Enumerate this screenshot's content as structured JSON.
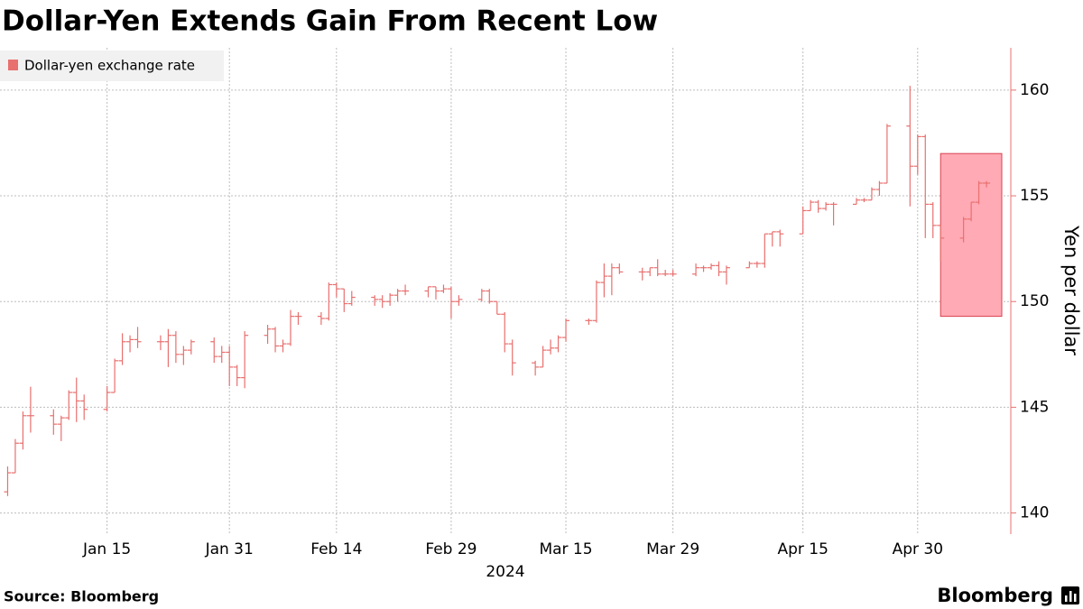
{
  "chart_data": {
    "type": "ohlc",
    "title": "Dollar-Yen Extends Gain From Recent Low",
    "y_label": "Yen per dollar",
    "x_label": "2024",
    "source": "Source: Bloomberg",
    "brand": "Bloomberg",
    "x": [
      "2024-01-02",
      "2024-01-03",
      "2024-01-04",
      "2024-01-05",
      "2024-01-08",
      "2024-01-09",
      "2024-01-10",
      "2024-01-11",
      "2024-01-12",
      "2024-01-15",
      "2024-01-16",
      "2024-01-17",
      "2024-01-18",
      "2024-01-19",
      "2024-01-22",
      "2024-01-23",
      "2024-01-24",
      "2024-01-25",
      "2024-01-26",
      "2024-01-29",
      "2024-01-30",
      "2024-01-31",
      "2024-02-01",
      "2024-02-02",
      "2024-02-05",
      "2024-02-06",
      "2024-02-07",
      "2024-02-08",
      "2024-02-09",
      "2024-02-12",
      "2024-02-13",
      "2024-02-14",
      "2024-02-15",
      "2024-02-16",
      "2024-02-19",
      "2024-02-20",
      "2024-02-21",
      "2024-02-22",
      "2024-02-23",
      "2024-02-26",
      "2024-02-27",
      "2024-02-28",
      "2024-02-29",
      "2024-03-01",
      "2024-03-04",
      "2024-03-05",
      "2024-03-06",
      "2024-03-07",
      "2024-03-08",
      "2024-03-11",
      "2024-03-12",
      "2024-03-13",
      "2024-03-14",
      "2024-03-15",
      "2024-03-18",
      "2024-03-19",
      "2024-03-20",
      "2024-03-21",
      "2024-03-22",
      "2024-03-25",
      "2024-03-26",
      "2024-03-27",
      "2024-03-28",
      "2024-03-29",
      "2024-04-01",
      "2024-04-02",
      "2024-04-03",
      "2024-04-04",
      "2024-04-05",
      "2024-04-08",
      "2024-04-09",
      "2024-04-10",
      "2024-04-11",
      "2024-04-12",
      "2024-04-15",
      "2024-04-16",
      "2024-04-17",
      "2024-04-18",
      "2024-04-19",
      "2024-04-22",
      "2024-04-23",
      "2024-04-24",
      "2024-04-25",
      "2024-04-26",
      "2024-04-29",
      "2024-04-30",
      "2024-05-01",
      "2024-05-02",
      "2024-05-03",
      "2024-05-06",
      "2024-05-07",
      "2024-05-08",
      "2024-05-09"
    ],
    "series": [
      {
        "name": "Dollar-yen exchange rate",
        "color": "#e8706f",
        "open": [
          141.0,
          141.9,
          143.3,
          144.6,
          144.6,
          144.2,
          144.5,
          145.7,
          145.3,
          144.9,
          145.7,
          147.2,
          148.1,
          148.2,
          148.1,
          148.1,
          148.4,
          147.5,
          147.7,
          148.1,
          147.4,
          147.6,
          146.9,
          146.4,
          148.4,
          148.7,
          147.9,
          148.0,
          149.3,
          149.3,
          149.2,
          150.8,
          150.6,
          149.9,
          150.2,
          150.1,
          150.0,
          150.3,
          150.5,
          150.5,
          150.7,
          150.5,
          150.6,
          150.0,
          150.1,
          150.5,
          150.0,
          149.4,
          148.0,
          147.1,
          146.9,
          147.7,
          147.8,
          148.3,
          149.1,
          149.1,
          150.9,
          151.2,
          151.6,
          151.4,
          151.4,
          151.6,
          151.3,
          151.3,
          151.3,
          151.6,
          151.6,
          151.7,
          151.4,
          151.6,
          151.8,
          151.8,
          153.2,
          153.3,
          153.2,
          154.3,
          154.7,
          154.4,
          154.6,
          154.6,
          154.8,
          154.8,
          155.3,
          155.6,
          158.3,
          156.4,
          157.8,
          154.6,
          153.6,
          153.0,
          153.9,
          154.7,
          155.6
        ],
        "high": [
          142.2,
          143.5,
          144.8,
          145.97,
          144.9,
          144.6,
          145.8,
          146.4,
          145.6,
          146.0,
          147.3,
          148.5,
          148.4,
          148.8,
          148.4,
          148.7,
          148.6,
          147.9,
          148.2,
          148.3,
          147.9,
          147.9,
          147.0,
          148.6,
          148.9,
          148.8,
          148.2,
          149.6,
          149.5,
          149.5,
          150.9,
          150.9,
          150.6,
          150.5,
          150.3,
          150.3,
          150.4,
          150.6,
          150.8,
          150.7,
          150.7,
          150.8,
          150.7,
          150.3,
          150.6,
          150.6,
          150.0,
          149.5,
          148.2,
          147.2,
          147.9,
          148.2,
          148.4,
          149.2,
          149.2,
          151.0,
          151.8,
          151.8,
          151.8,
          151.6,
          151.6,
          152.0,
          151.5,
          151.5,
          151.8,
          151.7,
          151.8,
          151.9,
          151.7,
          151.9,
          151.9,
          153.2,
          153.3,
          153.4,
          154.5,
          154.8,
          154.8,
          154.7,
          154.7,
          154.9,
          154.9,
          155.4,
          155.7,
          158.4,
          160.2,
          157.9,
          157.9,
          154.7,
          153.6,
          154.0,
          154.7,
          155.7,
          155.7
        ],
        "low": [
          140.8,
          141.9,
          143.0,
          143.8,
          143.7,
          143.4,
          144.4,
          144.3,
          144.4,
          144.8,
          145.7,
          147.0,
          147.6,
          147.8,
          147.7,
          146.9,
          147.1,
          147.0,
          147.5,
          147.1,
          147.1,
          146.0,
          146.0,
          145.9,
          148.0,
          147.6,
          147.6,
          147.9,
          148.9,
          148.9,
          149.1,
          150.2,
          149.5,
          149.8,
          149.8,
          149.7,
          149.8,
          150.0,
          150.3,
          150.2,
          150.1,
          150.4,
          149.2,
          149.8,
          150.0,
          149.9,
          149.4,
          147.6,
          146.5,
          146.5,
          146.9,
          147.5,
          147.6,
          148.1,
          148.9,
          149.0,
          150.2,
          150.3,
          151.3,
          151.0,
          151.2,
          151.2,
          151.2,
          151.2,
          151.2,
          151.4,
          151.5,
          151.2,
          150.8,
          151.6,
          151.6,
          151.6,
          152.6,
          152.6,
          153.2,
          154.3,
          154.2,
          154.3,
          153.6,
          154.6,
          154.7,
          154.8,
          155.0,
          155.6,
          154.5,
          156.0,
          153.0,
          153.0,
          151.9,
          152.8,
          153.8,
          154.6,
          155.4
        ],
        "close": [
          141.9,
          143.3,
          144.6,
          144.6,
          144.2,
          144.5,
          145.7,
          145.3,
          144.9,
          145.7,
          147.2,
          148.1,
          148.2,
          148.1,
          148.1,
          148.4,
          147.5,
          147.7,
          148.1,
          147.4,
          147.6,
          146.9,
          146.4,
          148.4,
          148.7,
          147.9,
          148.0,
          149.3,
          149.3,
          149.2,
          150.8,
          150.6,
          149.9,
          150.2,
          150.1,
          150.0,
          150.3,
          150.5,
          150.5,
          150.7,
          150.5,
          150.6,
          150.0,
          150.1,
          150.5,
          150.0,
          149.4,
          148.0,
          147.1,
          146.9,
          147.7,
          147.8,
          148.3,
          149.1,
          149.1,
          150.9,
          151.2,
          151.6,
          151.4,
          151.4,
          151.6,
          151.3,
          151.3,
          151.3,
          151.6,
          151.6,
          151.7,
          151.4,
          151.6,
          151.8,
          151.8,
          153.2,
          153.3,
          153.2,
          154.3,
          154.7,
          154.4,
          154.6,
          154.6,
          154.8,
          154.8,
          155.3,
          155.6,
          158.3,
          156.4,
          157.8,
          154.6,
          153.6,
          153.0,
          153.9,
          154.7,
          155.6,
          155.6
        ]
      }
    ],
    "xlim": [
      "2024-01-01",
      "2024-05-11"
    ],
    "xticks": [
      {
        "value": "2024-01-15",
        "label": "Jan 15"
      },
      {
        "value": "2024-01-31",
        "label": "Jan 31"
      },
      {
        "value": "2024-02-14",
        "label": "Feb 14"
      },
      {
        "value": "2024-02-29",
        "label": "Feb 29"
      },
      {
        "value": "2024-03-15",
        "label": "Mar 15"
      },
      {
        "value": "2024-03-29",
        "label": "Mar 29"
      },
      {
        "value": "2024-04-15",
        "label": "Apr 15"
      },
      {
        "value": "2024-04-30",
        "label": "Apr 30"
      }
    ],
    "ylim": [
      139,
      162
    ],
    "yticks": [
      140,
      145,
      150,
      155,
      160
    ],
    "grid": true,
    "legend": "top-left",
    "highlight": {
      "x": [
        "2024-05-03",
        "2024-05-11"
      ],
      "y": [
        157,
        149.3
      ],
      "color": "#ffaab5"
    }
  }
}
